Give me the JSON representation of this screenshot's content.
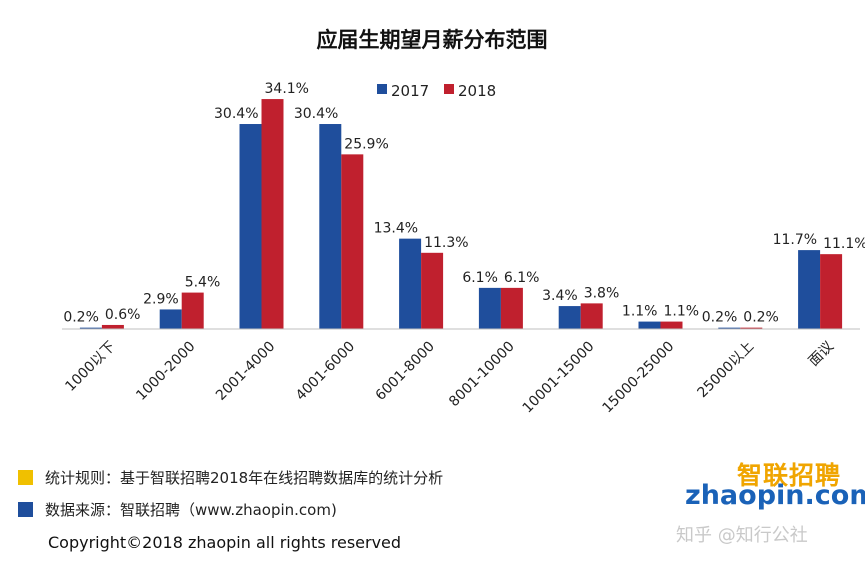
{
  "chart_data": {
    "type": "bar",
    "title": "应届生期望月薪分布范围",
    "categories": [
      "1000以下",
      "1000-2000",
      "2001-4000",
      "4001-6000",
      "6001-8000",
      "8001-10000",
      "10001-15000",
      "15000-25000",
      "25000以上",
      "面议"
    ],
    "series": [
      {
        "name": "2017",
        "color": "#1f4e9c",
        "values": [
          0.2,
          2.9,
          30.4,
          30.4,
          13.4,
          6.1,
          3.4,
          1.1,
          0.2,
          11.7
        ],
        "labels": [
          "0.2%",
          "2.9%",
          "30.4%",
          "30.4%",
          "13.4%",
          "6.1%",
          "3.4%",
          "1.1%",
          "0.2%",
          "11.7%"
        ]
      },
      {
        "name": "2018",
        "color": "#c0202e",
        "values": [
          0.6,
          5.4,
          34.1,
          25.9,
          11.3,
          6.1,
          3.8,
          1.1,
          0.2,
          11.1
        ],
        "labels": [
          "0.6%",
          "5.4%",
          "34.1%",
          "25.9%",
          "11.3%",
          "6.1%",
          "3.8%",
          "1.1%",
          "0.2%",
          "11.1%"
        ]
      }
    ],
    "ylim": [
      0,
      35
    ],
    "legend": "top-center",
    "grid": false
  },
  "notes": {
    "rule": {
      "text": "统计规则：基于智联招聘2018年在线招聘数据库的统计分析",
      "color": "#f0c000"
    },
    "source": {
      "text": "数据来源：智联招聘（www.zhaopin.com)",
      "color": "#1f4e9c"
    }
  },
  "copyright": "Copyright©2018 zhaopin all rights reserved",
  "logo": {
    "cn": "智联招聘",
    "en": "zhaopin.com"
  },
  "watermark": "知乎 @知行公社"
}
